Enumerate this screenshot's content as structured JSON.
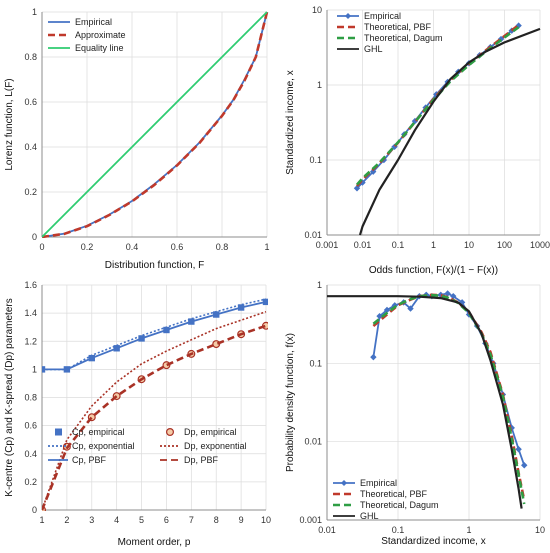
{
  "chart_data": [
    {
      "id": "lorenz",
      "type": "line",
      "xlabel": "Distribution function, F",
      "ylabel": "Lorenz function, L(F)",
      "xlim": [
        0,
        1
      ],
      "ylim": [
        0,
        1
      ],
      "x_ticks": [
        0,
        0.2,
        0.4,
        0.6,
        0.8,
        1
      ],
      "x_tick_labels": [
        "0",
        "0.2",
        "0.4",
        "0.6",
        "0.8",
        "1"
      ],
      "y_ticks": [
        0,
        0.2,
        0.4,
        0.6,
        0.8,
        1
      ],
      "y_tick_labels": [
        "0",
        "0.2",
        "0.4",
        "0.6",
        "0.8",
        "1"
      ],
      "grid": true,
      "legend_position": "top-left",
      "series": [
        {
          "name": "Empirical",
          "color": "#4472c4",
          "dash": "solid",
          "x": [
            0,
            0.1,
            0.2,
            0.3,
            0.4,
            0.5,
            0.6,
            0.7,
            0.8,
            0.85,
            0.9,
            0.95,
            1
          ],
          "y": [
            0,
            0.015,
            0.05,
            0.1,
            0.16,
            0.235,
            0.32,
            0.42,
            0.54,
            0.61,
            0.7,
            0.8,
            1
          ]
        },
        {
          "name": "Approximate",
          "color": "#c0392b",
          "dash": "dashed",
          "x": [
            0,
            0.1,
            0.2,
            0.3,
            0.4,
            0.5,
            0.6,
            0.7,
            0.8,
            0.85,
            0.9,
            0.95,
            1
          ],
          "y": [
            0,
            0.014,
            0.048,
            0.098,
            0.158,
            0.232,
            0.318,
            0.418,
            0.538,
            0.608,
            0.695,
            0.8,
            1
          ]
        },
        {
          "name": "Equality line",
          "color": "#2ecc71",
          "dash": "solid",
          "x": [
            0,
            1
          ],
          "y": [
            0,
            1
          ]
        }
      ]
    },
    {
      "id": "standardized",
      "type": "line",
      "xlabel": "Odds function, F(x)/(1 − F(x))",
      "ylabel": "Standardized income, x",
      "xscale": "log",
      "yscale": "log",
      "xlim": [
        0.001,
        1000
      ],
      "ylim": [
        0.01,
        10
      ],
      "x_ticks": [
        0.001,
        0.01,
        0.1,
        1,
        10,
        100,
        1000
      ],
      "x_tick_labels": [
        "0.001",
        "0.01",
        "0.1",
        "1",
        "10",
        "100",
        "1000"
      ],
      "y_ticks": [
        0.01,
        0.1,
        1,
        10
      ],
      "y_tick_labels": [
        "0.01",
        "0.1",
        "1",
        "10"
      ],
      "grid": true,
      "legend_position": "top-left",
      "series": [
        {
          "name": "Empirical",
          "color": "#4472c4",
          "dash": "solid",
          "marker": "diamond",
          "x": [
            0.007,
            0.01,
            0.02,
            0.04,
            0.08,
            0.15,
            0.3,
            0.6,
            1.2,
            2.5,
            5,
            10,
            20,
            40,
            80,
            160,
            250
          ],
          "y": [
            0.042,
            0.05,
            0.07,
            0.1,
            0.15,
            0.22,
            0.33,
            0.5,
            0.75,
            1.1,
            1.5,
            1.95,
            2.5,
            3.2,
            4.1,
            5.3,
            6.2
          ]
        },
        {
          "name": "Theoretical, PBF",
          "color": "#c0392b",
          "dash": "dashed",
          "x": [
            0.007,
            0.01,
            0.03,
            0.1,
            0.3,
            1,
            3,
            10,
            30,
            100,
            250
          ],
          "y": [
            0.045,
            0.055,
            0.09,
            0.17,
            0.32,
            0.65,
            1.15,
            1.9,
            2.9,
            4.5,
            6.3
          ]
        },
        {
          "name": "Theoretical, Dagum",
          "color": "#2e9e44",
          "dash": "dashed",
          "x": [
            0.007,
            0.01,
            0.03,
            0.1,
            0.3,
            1,
            3,
            10,
            30,
            100,
            250
          ],
          "y": [
            0.047,
            0.057,
            0.092,
            0.172,
            0.32,
            0.63,
            1.12,
            1.85,
            2.8,
            4.3,
            5.9
          ]
        },
        {
          "name": "GHL",
          "color": "#222222",
          "dash": "solid",
          "x": [
            0.0085,
            0.01,
            0.03,
            0.1,
            0.3,
            1,
            3,
            10,
            30,
            100,
            1000
          ],
          "y": [
            0.01,
            0.013,
            0.04,
            0.1,
            0.25,
            0.6,
            1.2,
            2.0,
            2.8,
            3.7,
            5.6
          ]
        }
      ]
    },
    {
      "id": "kcentre",
      "type": "line",
      "xlabel": "Moment order, p",
      "ylabel": "K-centre (Cp) and K-spread (Dp) parameters",
      "xlim": [
        1,
        10
      ],
      "ylim": [
        0,
        1.6
      ],
      "x_ticks": [
        1,
        2,
        3,
        4,
        5,
        6,
        7,
        8,
        9,
        10
      ],
      "x_tick_labels": [
        "1",
        "2",
        "3",
        "4",
        "5",
        "6",
        "7",
        "8",
        "9",
        "10"
      ],
      "y_ticks": [
        0,
        0.2,
        0.4,
        0.6,
        0.8,
        1,
        1.2,
        1.4,
        1.6
      ],
      "y_tick_labels": [
        "0",
        "0.2",
        "0.4",
        "0.6",
        "0.8",
        "1",
        "1.2",
        "1.4",
        "1.6"
      ],
      "grid": true,
      "legend_position": "bottom",
      "series": [
        {
          "name": "Cp, empirical",
          "color": "#4472c4",
          "dash": "none",
          "marker": "square",
          "x": [
            1,
            2,
            3,
            4,
            5,
            6,
            7,
            8,
            9,
            10
          ],
          "y": [
            1.0,
            1.0,
            1.08,
            1.15,
            1.22,
            1.28,
            1.34,
            1.39,
            1.44,
            1.48
          ]
        },
        {
          "name": "Cp, exponential",
          "color": "#4472c4",
          "dash": "dotted",
          "x": [
            1,
            2,
            3,
            4,
            5,
            6,
            7,
            8,
            9,
            10
          ],
          "y": [
            1.0,
            1.0,
            1.1,
            1.17,
            1.24,
            1.3,
            1.36,
            1.41,
            1.46,
            1.5
          ]
        },
        {
          "name": "Cp, PBF",
          "color": "#4472c4",
          "dash": "solid",
          "x": [
            1,
            2,
            3,
            4,
            5,
            6,
            7,
            8,
            9,
            10
          ],
          "y": [
            1.0,
            1.0,
            1.08,
            1.15,
            1.22,
            1.28,
            1.34,
            1.39,
            1.44,
            1.48
          ]
        },
        {
          "name": "Dp, empirical",
          "color": "#c0392b",
          "dash": "none",
          "marker": "circle",
          "x": [
            1,
            2,
            3,
            4,
            5,
            6,
            7,
            8,
            9,
            10
          ],
          "y": [
            0,
            0.45,
            0.66,
            0.81,
            0.93,
            1.03,
            1.11,
            1.18,
            1.25,
            1.31
          ]
        },
        {
          "name": "Dp, exponential",
          "color": "#a93226",
          "dash": "dotted",
          "x": [
            1,
            2,
            3,
            4,
            5,
            6,
            7,
            8,
            9,
            10
          ],
          "y": [
            0,
            0.5,
            0.74,
            0.91,
            1.04,
            1.13,
            1.21,
            1.29,
            1.35,
            1.41
          ]
        },
        {
          "name": "Dp, PBF",
          "color": "#a93226",
          "dash": "dashed",
          "x": [
            1,
            2,
            3,
            4,
            5,
            6,
            7,
            8,
            9,
            10
          ],
          "y": [
            0,
            0.44,
            0.66,
            0.81,
            0.93,
            1.03,
            1.11,
            1.18,
            1.25,
            1.31
          ]
        }
      ]
    },
    {
      "id": "density",
      "type": "line",
      "xlabel": "Standardized income, x",
      "ylabel": "Probability density function, f(x)",
      "xscale": "log",
      "yscale": "log",
      "xlim": [
        0.01,
        10
      ],
      "ylim": [
        0.001,
        1
      ],
      "x_ticks": [
        0.01,
        0.1,
        1,
        10
      ],
      "x_tick_labels": [
        "0.01",
        "0.1",
        "1",
        "10"
      ],
      "y_ticks": [
        0.001,
        0.01,
        0.1,
        1
      ],
      "y_tick_labels": [
        "0.001",
        "0.01",
        "0.1",
        "1"
      ],
      "grid": true,
      "legend_position": "bottom-left",
      "series": [
        {
          "name": "Empirical",
          "color": "#4472c4",
          "dash": "solid",
          "marker": "diamond",
          "x": [
            0.045,
            0.055,
            0.07,
            0.09,
            0.12,
            0.15,
            0.2,
            0.25,
            0.3,
            0.4,
            0.5,
            0.6,
            0.8,
            1.0,
            1.3,
            1.7,
            2.2,
            3.0,
            4.0,
            5.0,
            6.0
          ],
          "y": [
            0.12,
            0.4,
            0.48,
            0.55,
            0.6,
            0.5,
            0.72,
            0.75,
            0.72,
            0.75,
            0.78,
            0.72,
            0.6,
            0.42,
            0.3,
            0.18,
            0.1,
            0.04,
            0.015,
            0.008,
            0.005
          ]
        },
        {
          "name": "Theoretical, PBF",
          "color": "#c0392b",
          "dash": "dashed",
          "x": [
            0.045,
            0.07,
            0.1,
            0.15,
            0.2,
            0.3,
            0.4,
            0.5,
            0.7,
            1.0,
            1.5,
            2.0,
            3.0,
            4.0,
            5.0,
            6.0
          ],
          "y": [
            0.3,
            0.42,
            0.55,
            0.65,
            0.72,
            0.75,
            0.74,
            0.7,
            0.6,
            0.45,
            0.25,
            0.14,
            0.04,
            0.012,
            0.004,
            0.0018
          ]
        },
        {
          "name": "Theoretical, Dagum",
          "color": "#2e9e44",
          "dash": "dashed",
          "x": [
            0.045,
            0.07,
            0.1,
            0.15,
            0.2,
            0.3,
            0.4,
            0.5,
            0.7,
            1.0,
            1.5,
            2.0,
            3.0,
            4.0,
            5.0,
            6.0
          ],
          "y": [
            0.32,
            0.44,
            0.56,
            0.66,
            0.72,
            0.74,
            0.73,
            0.69,
            0.59,
            0.44,
            0.24,
            0.13,
            0.038,
            0.011,
            0.0038,
            0.0016
          ]
        },
        {
          "name": "GHL",
          "color": "#222222",
          "dash": "solid",
          "x": [
            0.01,
            0.03,
            0.1,
            0.2,
            0.4,
            0.7,
            1.0,
            1.5,
            2.0,
            3.0,
            4.0,
            5.0,
            5.5
          ],
          "y": [
            0.72,
            0.72,
            0.72,
            0.71,
            0.68,
            0.6,
            0.46,
            0.24,
            0.11,
            0.03,
            0.008,
            0.0025,
            0.0014
          ]
        }
      ]
    }
  ]
}
